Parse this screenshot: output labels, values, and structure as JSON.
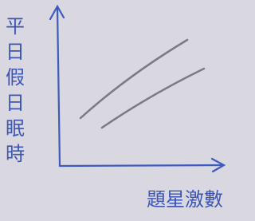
{
  "axes": {
    "y_label": [
      "平",
      "日",
      "假",
      "日",
      "眠",
      "時"
    ],
    "x_label": "題星激數"
  }
}
